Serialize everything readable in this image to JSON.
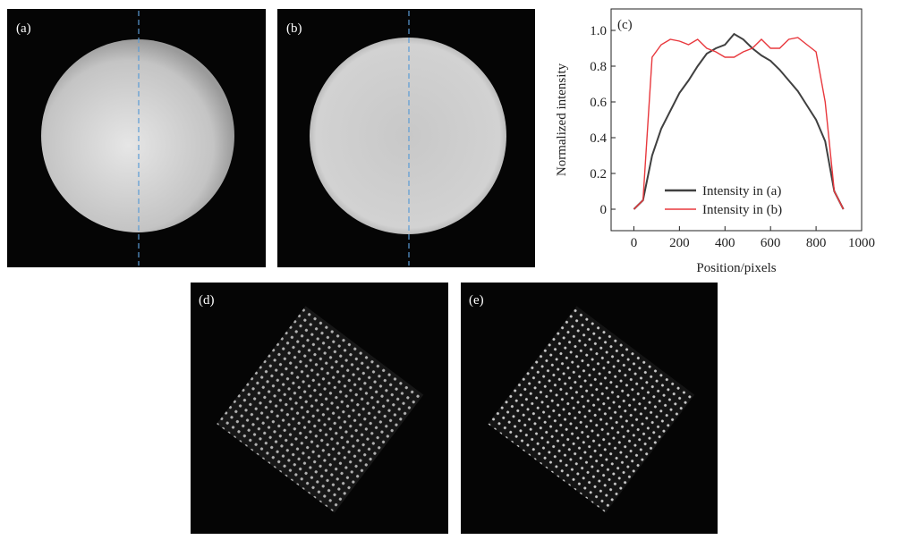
{
  "panels": [
    {
      "label": "(a)"
    },
    {
      "label": "(b)"
    },
    {
      "label": "(d)"
    },
    {
      "label": "(e)"
    }
  ],
  "chart_data": {
    "type": "line",
    "panel_label": "(c)",
    "xlabel": "Position/pixels",
    "ylabel": "Normalized intensity",
    "x": [
      0,
      40,
      80,
      120,
      160,
      200,
      240,
      280,
      320,
      360,
      400,
      440,
      480,
      520,
      560,
      600,
      640,
      680,
      720,
      760,
      800,
      840,
      880,
      920
    ],
    "series": [
      {
        "name": "Intensity in (a)",
        "color": "#404040",
        "values": [
          0,
          0.05,
          0.3,
          0.45,
          0.55,
          0.65,
          0.72,
          0.8,
          0.87,
          0.9,
          0.92,
          0.98,
          0.95,
          0.9,
          0.86,
          0.83,
          0.78,
          0.72,
          0.66,
          0.58,
          0.5,
          0.38,
          0.1,
          0
        ]
      },
      {
        "name": "Intensity in (b)",
        "color": "#e8383d",
        "values": [
          0,
          0.05,
          0.85,
          0.92,
          0.95,
          0.94,
          0.92,
          0.95,
          0.9,
          0.88,
          0.85,
          0.85,
          0.88,
          0.9,
          0.95,
          0.9,
          0.9,
          0.95,
          0.96,
          0.92,
          0.88,
          0.6,
          0.1,
          0
        ]
      }
    ],
    "xlim": [
      -100,
      1000
    ],
    "ylim": [
      -0.12,
      1.12
    ],
    "xticks": [
      0,
      200,
      400,
      600,
      800,
      1000
    ],
    "yticks": [
      0,
      0.2,
      0.4,
      0.6,
      0.8,
      {
        "value": 1,
        "label": "1.0"
      }
    ],
    "legend": "lower center"
  }
}
